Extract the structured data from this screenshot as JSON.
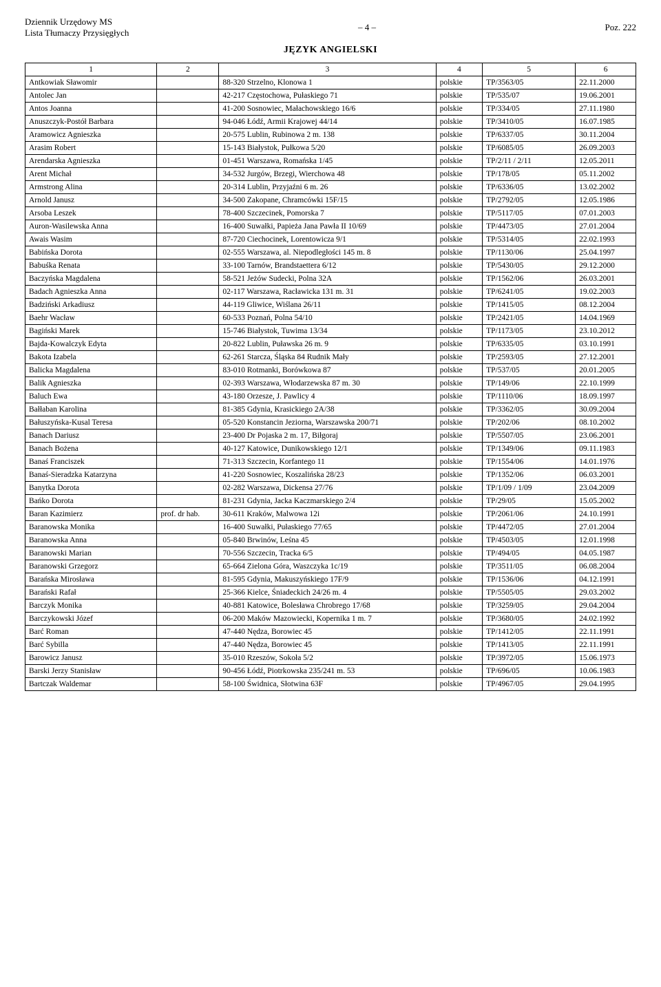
{
  "header": {
    "line1": "Dziennik Urzędowy MS",
    "line2": "Lista Tłumaczy Przysięgłych",
    "page_marker": "– 4 –",
    "poz": "Poz. 222"
  },
  "section_title": "JĘZYK ANGIELSKI",
  "columns": [
    "1",
    "2",
    "3",
    "4",
    "5",
    "6"
  ],
  "rows": [
    {
      "name": "Antkowiak Sławomir",
      "title": "",
      "addr": "88-320 Strzelno, Klonowa 1",
      "lang": "polskie",
      "tp": "TP/3563/05",
      "date": "22.11.2000"
    },
    {
      "name": "Antolec Jan",
      "title": "",
      "addr": "42-217 Częstochowa, Pułaskiego 71",
      "lang": "polskie",
      "tp": "TP/535/07",
      "date": "19.06.2001"
    },
    {
      "name": "Antos Joanna",
      "title": "",
      "addr": "41-200 Sosnowiec, Małachowskiego 16/6",
      "lang": "polskie",
      "tp": "TP/334/05",
      "date": "27.11.1980"
    },
    {
      "name": "Anuszczyk-Postół Barbara",
      "title": "",
      "addr": "94-046 Łódź, Armii Krajowej 44/14",
      "lang": "polskie",
      "tp": "TP/3410/05",
      "date": "16.07.1985"
    },
    {
      "name": "Aramowicz Agnieszka",
      "title": "",
      "addr": "20-575 Lublin, Rubinowa 2 m. 138",
      "lang": "polskie",
      "tp": "TP/6337/05",
      "date": "30.11.2004"
    },
    {
      "name": "Arasim Robert",
      "title": "",
      "addr": "15-143 Białystok, Pułkowa 5/20",
      "lang": "polskie",
      "tp": "TP/6085/05",
      "date": "26.09.2003"
    },
    {
      "name": "Arendarska Agnieszka",
      "title": "",
      "addr": "01-451 Warszawa, Romańska 1/45",
      "lang": "polskie",
      "tp": "TP/2/11  /  2/11",
      "date": "12.05.2011"
    },
    {
      "name": "Arent Michał",
      "title": "",
      "addr": "34-532 Jurgów, Brzegi, Wierchowa 48",
      "lang": "polskie",
      "tp": "TP/178/05",
      "date": "05.11.2002"
    },
    {
      "name": "Armstrong Alina",
      "title": "",
      "addr": "20-314 Lublin, Przyjaźni 6 m. 26",
      "lang": "polskie",
      "tp": "TP/6336/05",
      "date": "13.02.2002"
    },
    {
      "name": "Arnold Janusz",
      "title": "",
      "addr": "34-500 Zakopane, Chramcówki 15F/15",
      "lang": "polskie",
      "tp": "TP/2792/05",
      "date": "12.05.1986"
    },
    {
      "name": "Arsoba Leszek",
      "title": "",
      "addr": "78-400 Szczecinek, Pomorska 7",
      "lang": "polskie",
      "tp": "TP/5117/05",
      "date": "07.01.2003"
    },
    {
      "name": "Auron-Wasilewska Anna",
      "title": "",
      "addr": "16-400 Suwałki, Papieża Jana Pawła II 10/69",
      "lang": "polskie",
      "tp": "TP/4473/05",
      "date": "27.01.2004"
    },
    {
      "name": "Awais Wasim",
      "title": "",
      "addr": "87-720 Ciechocinek, Lorentowicza 9/1",
      "lang": "polskie",
      "tp": "TP/5314/05",
      "date": "22.02.1993"
    },
    {
      "name": "Babińska Dorota",
      "title": "",
      "addr": "02-555 Warszawa, al. Niepodległości 145 m. 8",
      "lang": "polskie",
      "tp": "TP/1130/06",
      "date": "25.04.1997"
    },
    {
      "name": "Babuśka Renata",
      "title": "",
      "addr": "33-100 Tarnów, Brandstaettera 6/12",
      "lang": "polskie",
      "tp": "TP/5430/05",
      "date": "29.12.2000"
    },
    {
      "name": "Baczyńska Magdalena",
      "title": "",
      "addr": "58-521 Jeżów Sudecki, Polna 32A",
      "lang": "polskie",
      "tp": "TP/1562/06",
      "date": "26.03.2001"
    },
    {
      "name": "Badach Agnieszka Anna",
      "title": "",
      "addr": "02-117 Warszawa, Racławicka 131 m. 31",
      "lang": "polskie",
      "tp": "TP/6241/05",
      "date": "19.02.2003"
    },
    {
      "name": "Badziński Arkadiusz",
      "title": "",
      "addr": "44-119 Gliwice, Wiślana 26/11",
      "lang": "polskie",
      "tp": "TP/1415/05",
      "date": "08.12.2004"
    },
    {
      "name": "Baehr Wacław",
      "title": "",
      "addr": "60-533 Poznań, Polna 54/10",
      "lang": "polskie",
      "tp": "TP/2421/05",
      "date": "14.04.1969"
    },
    {
      "name": "Bagiński Marek",
      "title": "",
      "addr": "15-746 Białystok, Tuwima 13/34",
      "lang": "polskie",
      "tp": "TP/1173/05",
      "date": "23.10.2012"
    },
    {
      "name": "Bajda-Kowalczyk Edyta",
      "title": "",
      "addr": "20-822 Lublin, Puławska 26 m. 9",
      "lang": "polskie",
      "tp": "TP/6335/05",
      "date": "03.10.1991"
    },
    {
      "name": "Bakota Izabela",
      "title": "",
      "addr": "62-261 Starcza, Śląska 84 Rudnik Mały",
      "lang": "polskie",
      "tp": "TP/2593/05",
      "date": "27.12.2001"
    },
    {
      "name": "Balicka Magdalena",
      "title": "",
      "addr": "83-010 Rotmanki, Borówkowa 87",
      "lang": "polskie",
      "tp": "TP/537/05",
      "date": "20.01.2005"
    },
    {
      "name": "Balik Agnieszka",
      "title": "",
      "addr": "02-393 Warszawa, Włodarzewska 87 m. 30",
      "lang": "polskie",
      "tp": "TP/149/06",
      "date": "22.10.1999"
    },
    {
      "name": "Baluch Ewa",
      "title": "",
      "addr": "43-180 Orzesze, J. Pawlicy 4",
      "lang": "polskie",
      "tp": "TP/1110/06",
      "date": "18.09.1997"
    },
    {
      "name": "Bałłaban Karolina",
      "title": "",
      "addr": "81-385 Gdynia, Krasickiego 2A/38",
      "lang": "polskie",
      "tp": "TP/3362/05",
      "date": "30.09.2004"
    },
    {
      "name": "Bałuszyńska-Kusal Teresa",
      "title": "",
      "addr": "05-520 Konstancin Jeziorna, Warszawska 200/71",
      "lang": "polskie",
      "tp": "TP/202/06",
      "date": "08.10.2002"
    },
    {
      "name": "Banach Dariusz",
      "title": "",
      "addr": "23-400 Dr Pojaska 2 m. 17, Biłgoraj",
      "lang": "polskie",
      "tp": "TP/5507/05",
      "date": "23.06.2001"
    },
    {
      "name": "Banach Bożena",
      "title": "",
      "addr": "40-127 Katowice, Dunikowskiego 12/1",
      "lang": "polskie",
      "tp": "TP/1349/06",
      "date": "09.11.1983"
    },
    {
      "name": "Banaś Franciszek",
      "title": "",
      "addr": "71-313 Szczecin, Korfantego 11",
      "lang": "polskie",
      "tp": "TP/1554/06",
      "date": "14.01.1976"
    },
    {
      "name": "Banaś-Sieradzka Katarzyna",
      "title": "",
      "addr": "41-220 Sosnowiec, Koszalińska 28/23",
      "lang": "polskie",
      "tp": "TP/1352/06",
      "date": "06.03.2001"
    },
    {
      "name": "Banytka Dorota",
      "title": "",
      "addr": "02-282 Warszawa, Dickensa 27/76",
      "lang": "polskie",
      "tp": "TP/1/09  /  1/09",
      "date": "23.04.2009"
    },
    {
      "name": "Bańko Dorota",
      "title": "",
      "addr": "81-231 Gdynia, Jacka Kaczmarskiego 2/4",
      "lang": "polskie",
      "tp": "TP/29/05",
      "date": "15.05.2002"
    },
    {
      "name": "Baran Kazimierz",
      "title": "prof. dr hab.",
      "addr": "30-611 Kraków, Malwowa 12i",
      "lang": "polskie",
      "tp": "TP/2061/06",
      "date": "24.10.1991"
    },
    {
      "name": "Baranowska Monika",
      "title": "",
      "addr": "16-400 Suwałki, Pułaskiego 77/65",
      "lang": "polskie",
      "tp": "TP/4472/05",
      "date": "27.01.2004"
    },
    {
      "name": "Baranowska Anna",
      "title": "",
      "addr": "05-840 Brwinów, Leśna 45",
      "lang": "polskie",
      "tp": "TP/4503/05",
      "date": "12.01.1998"
    },
    {
      "name": "Baranowski Marian",
      "title": "",
      "addr": "70-556 Szczecin, Tracka 6/5",
      "lang": "polskie",
      "tp": "TP/494/05",
      "date": "04.05.1987"
    },
    {
      "name": "Baranowski Grzegorz",
      "title": "",
      "addr": "65-664 Zielona Góra, Waszczyka 1c/19",
      "lang": "polskie",
      "tp": "TP/3511/05",
      "date": "06.08.2004"
    },
    {
      "name": "Barańska Mirosława",
      "title": "",
      "addr": "81-595 Gdynia, Makuszyńskiego 17F/9",
      "lang": "polskie",
      "tp": "TP/1536/06",
      "date": "04.12.1991"
    },
    {
      "name": "Barański Rafał",
      "title": "",
      "addr": "25-366 Kielce, Śniadeckich 24/26 m. 4",
      "lang": "polskie",
      "tp": "TP/5505/05",
      "date": "29.03.2002"
    },
    {
      "name": "Barczyk Monika",
      "title": "",
      "addr": "40-881 Katowice, Bolesława Chrobrego 17/68",
      "lang": "polskie",
      "tp": "TP/3259/05",
      "date": "29.04.2004"
    },
    {
      "name": "Barczykowski Józef",
      "title": "",
      "addr": "06-200 Maków Mazowiecki, Kopernika 1 m. 7",
      "lang": "polskie",
      "tp": "TP/3680/05",
      "date": "24.02.1992"
    },
    {
      "name": "Barć Roman",
      "title": "",
      "addr": "47-440 Nędza, Borowiec 45",
      "lang": "polskie",
      "tp": "TP/1412/05",
      "date": "22.11.1991"
    },
    {
      "name": "Barć Sybilla",
      "title": "",
      "addr": "47-440 Nędza, Borowiec 45",
      "lang": "polskie",
      "tp": "TP/1413/05",
      "date": "22.11.1991"
    },
    {
      "name": "Barowicz Janusz",
      "title": "",
      "addr": "35-010 Rzeszów, Sokoła 5/2",
      "lang": "polskie",
      "tp": "TP/3972/05",
      "date": "15.06.1973"
    },
    {
      "name": "Barski Jerzy Stanisław",
      "title": "",
      "addr": "90-456 Łódź, Piotrkowska 235/241 m. 53",
      "lang": "polskie",
      "tp": "TP/696/05",
      "date": "10.06.1983"
    },
    {
      "name": "Bartczak Waldemar",
      "title": "",
      "addr": "58-100 Świdnica, Słotwina 63F",
      "lang": "polskie",
      "tp": "TP/4967/05",
      "date": "29.04.1995"
    }
  ]
}
